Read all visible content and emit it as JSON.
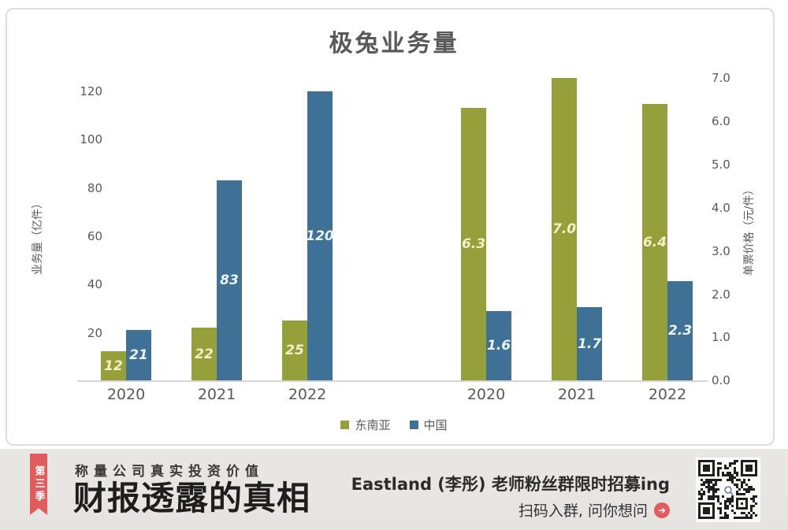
{
  "chart_data": {
    "type": "bar",
    "title": "极兔业务量",
    "ylabel_left": "业务量（亿件）",
    "ylabel_right": "单票价格（元/件）",
    "left_ylim": [
      0,
      120
    ],
    "right_ylim": [
      0,
      7.0
    ],
    "left_tick_labels": [
      "120",
      "100",
      "80",
      "60",
      "40",
      "20",
      "-"
    ],
    "right_tick_labels": [
      "7.0",
      "6.0",
      "5.0",
      "4.0",
      "3.0",
      "2.0",
      "1.0",
      "0.0"
    ],
    "grid": false,
    "legend_position": "bottom",
    "legend": [
      {
        "label": "东南亚",
        "color": "#96A03A"
      },
      {
        "label": "中国",
        "color": "#3E7195"
      }
    ],
    "groups": [
      {
        "name": "业务量",
        "axis": "left",
        "unit": "亿件",
        "categories": [
          "2020",
          "2021",
          "2022"
        ],
        "series": [
          {
            "name": "东南亚",
            "color": "#96A03A",
            "values": [
              12,
              22,
              25
            ],
            "labels": [
              "12",
              "22",
              "25"
            ]
          },
          {
            "name": "中国",
            "color": "#3E7195",
            "values": [
              21,
              83,
              120
            ],
            "labels": [
              "21",
              "83",
              "120"
            ]
          }
        ]
      },
      {
        "name": "单票价格",
        "axis": "right",
        "unit": "元/件",
        "categories": [
          "2020",
          "2021",
          "2022"
        ],
        "series": [
          {
            "name": "东南亚",
            "color": "#96A03A",
            "values": [
              6.3,
              7.0,
              6.4
            ],
            "labels": [
              "6.3",
              "7.0",
              "6.4"
            ]
          },
          {
            "name": "中国",
            "color": "#3E7195",
            "values": [
              1.6,
              1.7,
              2.3
            ],
            "labels": [
              "1.6",
              "1.7",
              "2.3"
            ]
          }
        ]
      }
    ]
  },
  "banner": {
    "ribbon_text": "第三季",
    "tagline": "称量公司真实投资价值",
    "brand_title": "财报透露的真相",
    "promo_title": "Eastland (李彤) 老师粉丝群限时招募ing",
    "promo_cta": "扫码入群, 问你想问",
    "arrow_glyph": "➜",
    "colors": {
      "ribbon": "#E15C5C",
      "cta_arrow": "#E15C5C",
      "background": "#E8E6E3"
    }
  },
  "colors": {
    "series_southeast_asia": "#96A03A",
    "series_china": "#3E7195",
    "axis_text": "#595959",
    "bar_label_on_olive": "#F5EFC9",
    "bar_label_on_blue": "#EDF4F9",
    "card_border": "#DCDCDC",
    "axis_line": "#D6D6D6",
    "qr_module": "#1F1F1F"
  }
}
